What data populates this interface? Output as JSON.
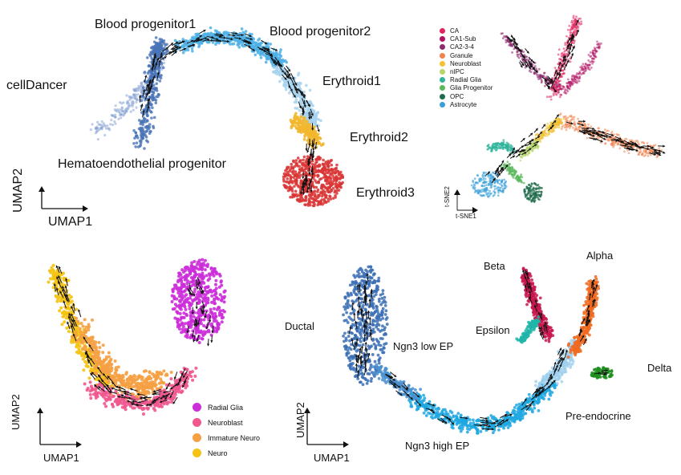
{
  "panels": {
    "erythroid": {
      "method_label": "cellDancer",
      "xlabel": "UMAP1",
      "ylabel": "UMAP2",
      "clusters": [
        {
          "name": "Blood progenitor1",
          "color": "#4a74b8"
        },
        {
          "name": "Blood progenitor2",
          "color": "#4fb0e6"
        },
        {
          "name": "Erythroid1",
          "color": "#a8d4f0"
        },
        {
          "name": "Erythroid2",
          "color": "#f2b72d"
        },
        {
          "name": "Erythroid3",
          "color": "#d93535"
        },
        {
          "name": "Hematoendothelial progenitor",
          "color": "#8aa6d6"
        }
      ]
    },
    "hippocampus": {
      "xlabel": "t-SNE1",
      "ylabel": "t-SNE2",
      "legend": [
        {
          "name": "CA",
          "color": "#e0245e"
        },
        {
          "name": "CA1-Sub",
          "color": "#b01060"
        },
        {
          "name": "CA2-3-4",
          "color": "#8e2a6e"
        },
        {
          "name": "Granule",
          "color": "#f0844e"
        },
        {
          "name": "Neuroblast",
          "color": "#f2c232"
        },
        {
          "name": "nIPC",
          "color": "#b5d66a"
        },
        {
          "name": "Radial Glia",
          "color": "#2fb39b"
        },
        {
          "name": "Glia Progenitor",
          "color": "#5bb85c"
        },
        {
          "name": "OPC",
          "color": "#1f6b4c"
        },
        {
          "name": "Astrocyte",
          "color": "#3aa0d8"
        }
      ]
    },
    "neuro": {
      "xlabel": "UMAP1",
      "ylabel": "UMAP2",
      "legend": [
        {
          "name": "Radial Glia",
          "color": "#cc2ed9"
        },
        {
          "name": "Neuroblast",
          "color": "#f0588f"
        },
        {
          "name": "Immature Neuro",
          "color": "#f5a043"
        },
        {
          "name": "Neuro",
          "color": "#f5c314"
        }
      ]
    },
    "pancreas": {
      "xlabel": "UMAP1",
      "ylabel": "UMAP2",
      "clusters": [
        {
          "name": "Ductal",
          "color": "#3b6fb5"
        },
        {
          "name": "Ngn3 low EP",
          "color": "#4a90d0"
        },
        {
          "name": "Ngn3 high EP",
          "color": "#1fa7e0"
        },
        {
          "name": "Pre-endocrine",
          "color": "#9fd0ee"
        },
        {
          "name": "Beta",
          "color": "#c8184f"
        },
        {
          "name": "Alpha",
          "color": "#f06a20"
        },
        {
          "name": "Epsilon",
          "color": "#20b5a8"
        },
        {
          "name": "Delta",
          "color": "#1f8f1f"
        }
      ]
    }
  }
}
